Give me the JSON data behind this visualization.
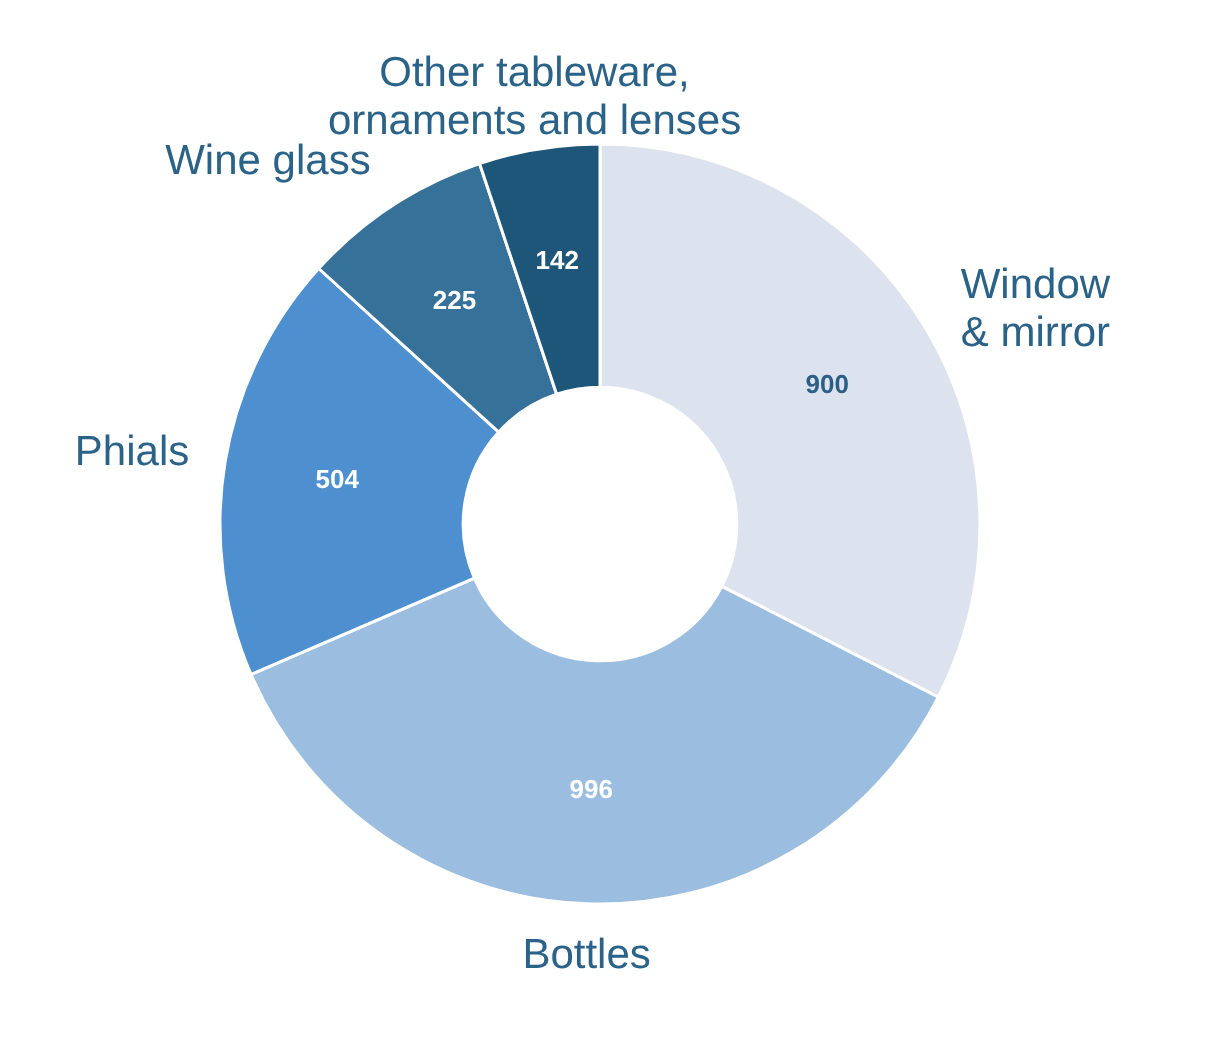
{
  "chart_data": {
    "type": "donut",
    "categories": [
      "Window\n& mirror",
      "Bottles",
      "Phials",
      "Wine glass",
      "Other tableware,\nornaments and lenses"
    ],
    "values": [
      900,
      996,
      504,
      225,
      142
    ],
    "colors": [
      "#dde3ee",
      "#9bbde0",
      "#4d8fcf",
      "#36719a",
      "#1d5679"
    ],
    "data_labels": true
  }
}
